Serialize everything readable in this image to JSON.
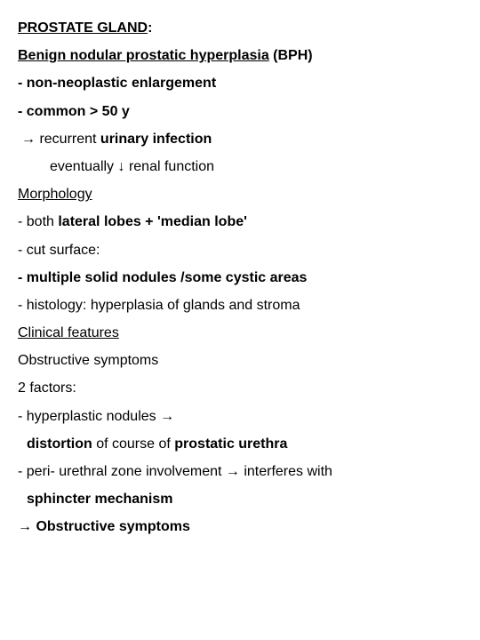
{
  "doc": {
    "title_main": "PROSTATE GLAND",
    "title_colon": ":",
    "subtitle_u": "Benign nodular prostatic hyperplasia",
    "subtitle_rest": " (BPH)",
    "l1": "- non-neoplastic enlargement",
    "l2": "- common > 50 y",
    "l3_arrow": "→ ",
    "l3_a": "recurrent ",
    "l3_b": "urinary infection",
    "l4_a": "eventually ",
    "l4_arrow": "↓",
    "l4_b": " renal function",
    "morph": "Morphology",
    "m1_a": "- both ",
    "m1_b": "lateral lobes + 'median lobe'",
    "m2": "- cut surface:",
    "m3": "- multiple solid nodules /some cystic areas",
    "m4": "- histology: hyperplasia of glands and stroma",
    "clin": "Clinical features",
    "c1": "Obstructive symptoms",
    "c2": "2 factors:",
    "c3_a": "- hyperplastic nodules ",
    "c3_arrow": "→",
    "c4_a": "distortion",
    "c4_b": " of course of ",
    "c4_c": "prostatic urethra",
    "c5_a": "- peri- urethral zone involvement ",
    "c5_arrow": "→",
    "c5_b": " interferes with",
    "c6": "sphincter mechanism",
    "c7_arrow": "→ ",
    "c7": "Obstructive symptoms"
  }
}
